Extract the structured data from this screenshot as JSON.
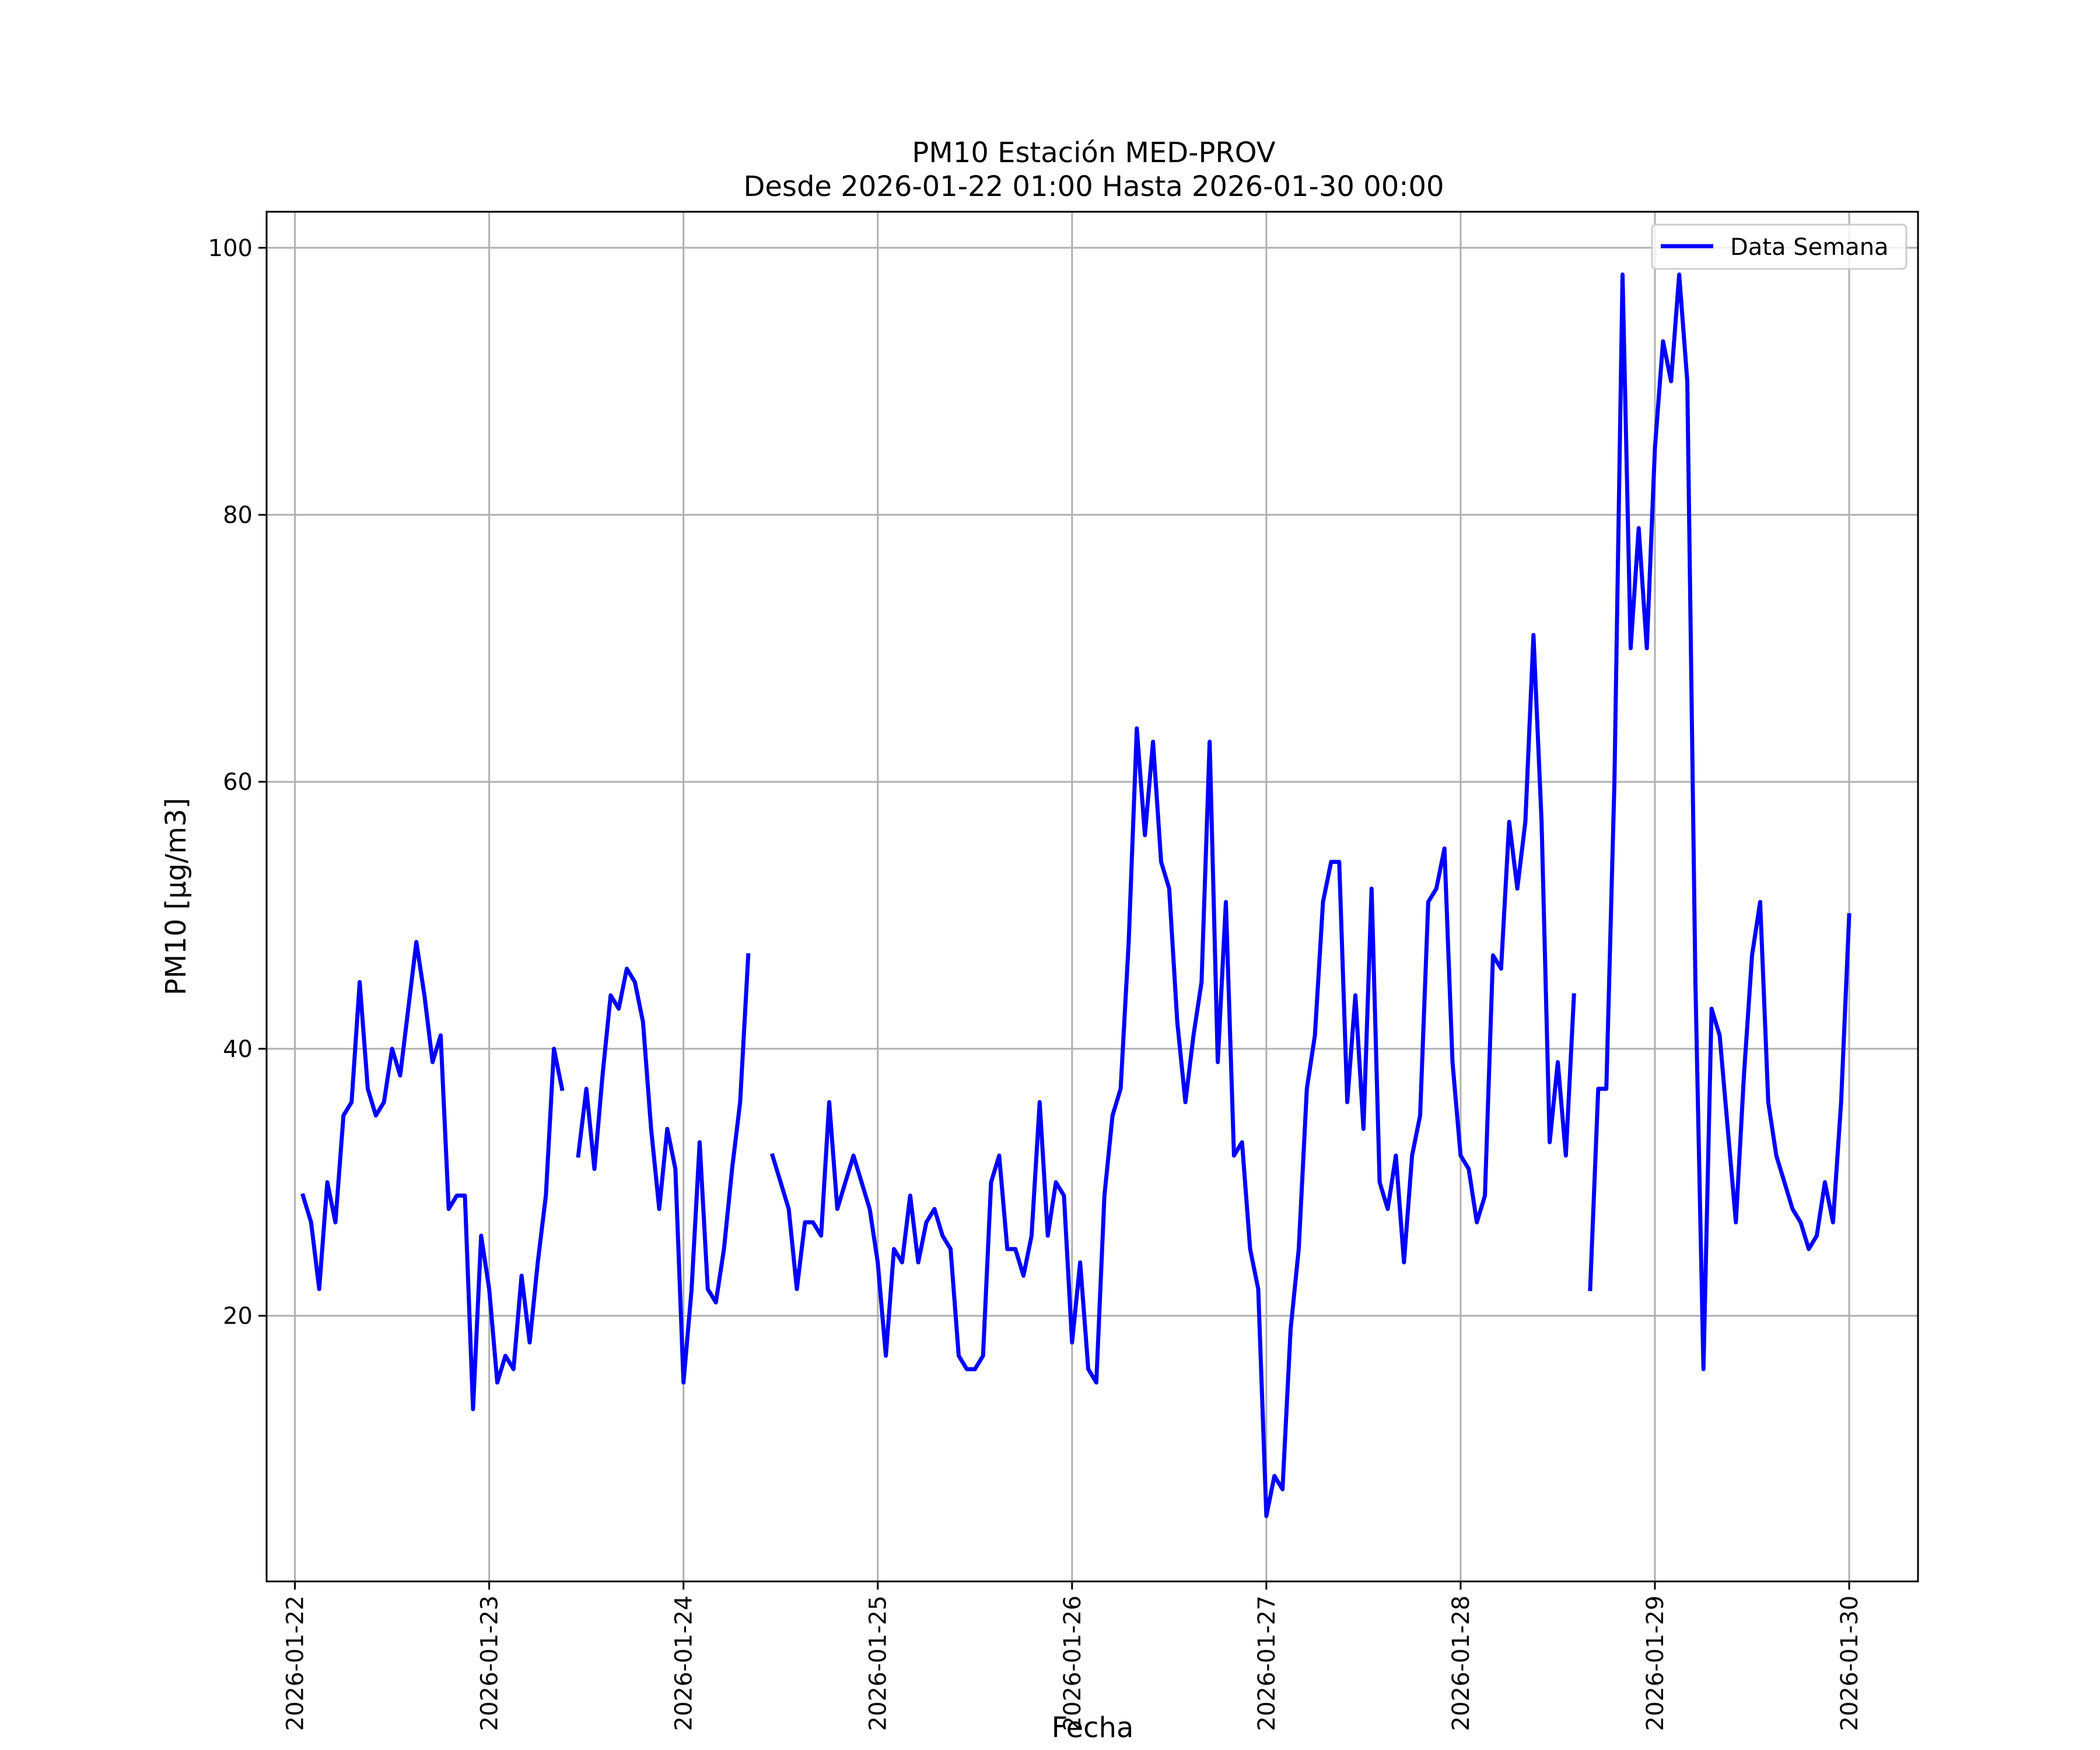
{
  "chart_data": {
    "type": "line",
    "title": "PM10 Estación MED-PROV",
    "subtitle": "Desde 2026-01-22 01:00 Hasta 2026-01-30 00:00",
    "xlabel": "Fecha",
    "ylabel": "PM10 [μg/m3]",
    "xlim": [
      "2026-01-21 20:30",
      "2026-01-30 08:30"
    ],
    "ylim": [
      0.1,
      102.7
    ],
    "x_ticks": [
      "2026-01-22",
      "2026-01-23",
      "2026-01-24",
      "2026-01-25",
      "2026-01-26",
      "2026-01-27",
      "2026-01-28",
      "2026-01-29",
      "2026-01-30"
    ],
    "y_ticks": [
      20,
      40,
      60,
      80,
      100
    ],
    "grid": true,
    "legend_position": "upper right",
    "series": [
      {
        "name": "Data Semana",
        "color": "#0000ff",
        "points": [
          [
            "2026-01-22 01:00",
            29
          ],
          [
            "2026-01-22 02:00",
            27
          ],
          [
            "2026-01-22 03:00",
            22
          ],
          [
            "2026-01-22 04:00",
            30
          ],
          [
            "2026-01-22 05:00",
            27
          ],
          [
            "2026-01-22 06:00",
            35
          ],
          [
            "2026-01-22 07:00",
            36
          ],
          [
            "2026-01-22 08:00",
            45
          ],
          [
            "2026-01-22 09:00",
            37
          ],
          [
            "2026-01-22 10:00",
            35
          ],
          [
            "2026-01-22 11:00",
            36
          ],
          [
            "2026-01-22 12:00",
            40
          ],
          [
            "2026-01-22 13:00",
            38
          ],
          [
            "2026-01-22 14:00",
            43
          ],
          [
            "2026-01-22 15:00",
            48
          ],
          [
            "2026-01-22 16:00",
            44
          ],
          [
            "2026-01-22 17:00",
            39
          ],
          [
            "2026-01-22 18:00",
            41
          ],
          [
            "2026-01-22 19:00",
            28
          ],
          [
            "2026-01-22 20:00",
            29
          ],
          [
            "2026-01-22 21:00",
            29
          ],
          [
            "2026-01-22 22:00",
            13
          ],
          [
            "2026-01-22 23:00",
            26
          ],
          [
            "2026-01-23 00:00",
            22
          ],
          [
            "2026-01-23 01:00",
            15
          ],
          [
            "2026-01-23 02:00",
            17
          ],
          [
            "2026-01-23 03:00",
            16
          ],
          [
            "2026-01-23 04:00",
            23
          ],
          [
            "2026-01-23 05:00",
            18
          ],
          [
            "2026-01-23 06:00",
            24
          ],
          [
            "2026-01-23 07:00",
            29
          ],
          [
            "2026-01-23 08:00",
            40
          ],
          [
            "2026-01-23 09:00",
            37
          ],
          [
            "2026-01-23 10:00",
            null
          ],
          [
            "2026-01-23 11:00",
            32
          ],
          [
            "2026-01-23 12:00",
            37
          ],
          [
            "2026-01-23 13:00",
            31
          ],
          [
            "2026-01-23 14:00",
            38
          ],
          [
            "2026-01-23 15:00",
            44
          ],
          [
            "2026-01-23 16:00",
            43
          ],
          [
            "2026-01-23 17:00",
            46
          ],
          [
            "2026-01-23 18:00",
            45
          ],
          [
            "2026-01-23 19:00",
            42
          ],
          [
            "2026-01-23 20:00",
            34
          ],
          [
            "2026-01-23 21:00",
            28
          ],
          [
            "2026-01-23 22:00",
            34
          ],
          [
            "2026-01-23 23:00",
            31
          ],
          [
            "2026-01-24 00:00",
            15
          ],
          [
            "2026-01-24 01:00",
            22
          ],
          [
            "2026-01-24 02:00",
            33
          ],
          [
            "2026-01-24 03:00",
            22
          ],
          [
            "2026-01-24 04:00",
            21
          ],
          [
            "2026-01-24 05:00",
            25
          ],
          [
            "2026-01-24 06:00",
            31
          ],
          [
            "2026-01-24 07:00",
            36
          ],
          [
            "2026-01-24 08:00",
            47
          ],
          [
            "2026-01-24 09:00",
            null
          ],
          [
            "2026-01-24 10:00",
            null
          ],
          [
            "2026-01-24 11:00",
            32
          ],
          [
            "2026-01-24 12:00",
            30
          ],
          [
            "2026-01-24 13:00",
            28
          ],
          [
            "2026-01-24 14:00",
            22
          ],
          [
            "2026-01-24 15:00",
            27
          ],
          [
            "2026-01-24 16:00",
            27
          ],
          [
            "2026-01-24 17:00",
            26
          ],
          [
            "2026-01-24 18:00",
            36
          ],
          [
            "2026-01-24 19:00",
            28
          ],
          [
            "2026-01-24 20:00",
            30
          ],
          [
            "2026-01-24 21:00",
            32
          ],
          [
            "2026-01-24 22:00",
            30
          ],
          [
            "2026-01-24 23:00",
            28
          ],
          [
            "2026-01-25 00:00",
            24
          ],
          [
            "2026-01-25 01:00",
            17
          ],
          [
            "2026-01-25 02:00",
            25
          ],
          [
            "2026-01-25 03:00",
            24
          ],
          [
            "2026-01-25 04:00",
            29
          ],
          [
            "2026-01-25 05:00",
            24
          ],
          [
            "2026-01-25 06:00",
            27
          ],
          [
            "2026-01-25 07:00",
            28
          ],
          [
            "2026-01-25 08:00",
            26
          ],
          [
            "2026-01-25 09:00",
            25
          ],
          [
            "2026-01-25 10:00",
            17
          ],
          [
            "2026-01-25 11:00",
            16
          ],
          [
            "2026-01-25 12:00",
            16
          ],
          [
            "2026-01-25 13:00",
            17
          ],
          [
            "2026-01-25 14:00",
            30
          ],
          [
            "2026-01-25 15:00",
            32
          ],
          [
            "2026-01-25 16:00",
            25
          ],
          [
            "2026-01-25 17:00",
            25
          ],
          [
            "2026-01-25 18:00",
            23
          ],
          [
            "2026-01-25 19:00",
            26
          ],
          [
            "2026-01-25 20:00",
            36
          ],
          [
            "2026-01-25 21:00",
            26
          ],
          [
            "2026-01-25 22:00",
            30
          ],
          [
            "2026-01-25 23:00",
            29
          ],
          [
            "2026-01-26 00:00",
            18
          ],
          [
            "2026-01-26 01:00",
            24
          ],
          [
            "2026-01-26 02:00",
            16
          ],
          [
            "2026-01-26 03:00",
            15
          ],
          [
            "2026-01-26 04:00",
            29
          ],
          [
            "2026-01-26 05:00",
            35
          ],
          [
            "2026-01-26 06:00",
            37
          ],
          [
            "2026-01-26 07:00",
            48
          ],
          [
            "2026-01-26 08:00",
            64
          ],
          [
            "2026-01-26 09:00",
            56
          ],
          [
            "2026-01-26 10:00",
            63
          ],
          [
            "2026-01-26 11:00",
            54
          ],
          [
            "2026-01-26 12:00",
            52
          ],
          [
            "2026-01-26 13:00",
            42
          ],
          [
            "2026-01-26 14:00",
            36
          ],
          [
            "2026-01-26 15:00",
            41
          ],
          [
            "2026-01-26 16:00",
            45
          ],
          [
            "2026-01-26 17:00",
            63
          ],
          [
            "2026-01-26 18:00",
            39
          ],
          [
            "2026-01-26 19:00",
            51
          ],
          [
            "2026-01-26 20:00",
            32
          ],
          [
            "2026-01-26 21:00",
            33
          ],
          [
            "2026-01-26 22:00",
            25
          ],
          [
            "2026-01-26 23:00",
            22
          ],
          [
            "2026-01-27 00:00",
            5
          ],
          [
            "2026-01-27 01:00",
            8
          ],
          [
            "2026-01-27 02:00",
            7
          ],
          [
            "2026-01-27 03:00",
            19
          ],
          [
            "2026-01-27 04:00",
            25
          ],
          [
            "2026-01-27 05:00",
            37
          ],
          [
            "2026-01-27 06:00",
            41
          ],
          [
            "2026-01-27 07:00",
            51
          ],
          [
            "2026-01-27 08:00",
            54
          ],
          [
            "2026-01-27 09:00",
            54
          ],
          [
            "2026-01-27 10:00",
            36
          ],
          [
            "2026-01-27 11:00",
            44
          ],
          [
            "2026-01-27 12:00",
            34
          ],
          [
            "2026-01-27 13:00",
            52
          ],
          [
            "2026-01-27 14:00",
            30
          ],
          [
            "2026-01-27 15:00",
            28
          ],
          [
            "2026-01-27 16:00",
            32
          ],
          [
            "2026-01-27 17:00",
            24
          ],
          [
            "2026-01-27 18:00",
            32
          ],
          [
            "2026-01-27 19:00",
            35
          ],
          [
            "2026-01-27 20:00",
            51
          ],
          [
            "2026-01-27 21:00",
            52
          ],
          [
            "2026-01-27 22:00",
            55
          ],
          [
            "2026-01-27 23:00",
            39
          ],
          [
            "2026-01-28 00:00",
            32
          ],
          [
            "2026-01-28 01:00",
            31
          ],
          [
            "2026-01-28 02:00",
            27
          ],
          [
            "2026-01-28 03:00",
            29
          ],
          [
            "2026-01-28 04:00",
            47
          ],
          [
            "2026-01-28 05:00",
            46
          ],
          [
            "2026-01-28 06:00",
            57
          ],
          [
            "2026-01-28 07:00",
            52
          ],
          [
            "2026-01-28 08:00",
            57
          ],
          [
            "2026-01-28 09:00",
            71
          ],
          [
            "2026-01-28 10:00",
            57
          ],
          [
            "2026-01-28 11:00",
            33
          ],
          [
            "2026-01-28 12:00",
            39
          ],
          [
            "2026-01-28 13:00",
            32
          ],
          [
            "2026-01-28 14:00",
            44
          ],
          [
            "2026-01-28 15:00",
            null
          ],
          [
            "2026-01-28 16:00",
            22
          ],
          [
            "2026-01-28 17:00",
            37
          ],
          [
            "2026-01-28 18:00",
            37
          ],
          [
            "2026-01-28 19:00",
            60
          ],
          [
            "2026-01-28 20:00",
            98
          ],
          [
            "2026-01-28 21:00",
            70
          ],
          [
            "2026-01-28 22:00",
            79
          ],
          [
            "2026-01-28 23:00",
            70
          ],
          [
            "2026-01-29 00:00",
            85
          ],
          [
            "2026-01-29 01:00",
            93
          ],
          [
            "2026-01-29 02:00",
            90
          ],
          [
            "2026-01-29 03:00",
            98
          ],
          [
            "2026-01-29 04:00",
            90
          ],
          [
            "2026-01-29 05:00",
            45
          ],
          [
            "2026-01-29 06:00",
            16
          ],
          [
            "2026-01-29 07:00",
            43
          ],
          [
            "2026-01-29 08:00",
            41
          ],
          [
            "2026-01-29 09:00",
            34
          ],
          [
            "2026-01-29 10:00",
            27
          ],
          [
            "2026-01-29 11:00",
            38
          ],
          [
            "2026-01-29 12:00",
            47
          ],
          [
            "2026-01-29 13:00",
            51
          ],
          [
            "2026-01-29 14:00",
            36
          ],
          [
            "2026-01-29 15:00",
            32
          ],
          [
            "2026-01-29 16:00",
            30
          ],
          [
            "2026-01-29 17:00",
            28
          ],
          [
            "2026-01-29 18:00",
            27
          ],
          [
            "2026-01-29 19:00",
            25
          ],
          [
            "2026-01-29 20:00",
            26
          ],
          [
            "2026-01-29 21:00",
            30
          ],
          [
            "2026-01-29 22:00",
            27
          ],
          [
            "2026-01-29 23:00",
            36
          ],
          [
            "2026-01-30 00:00",
            50
          ]
        ]
      }
    ]
  }
}
